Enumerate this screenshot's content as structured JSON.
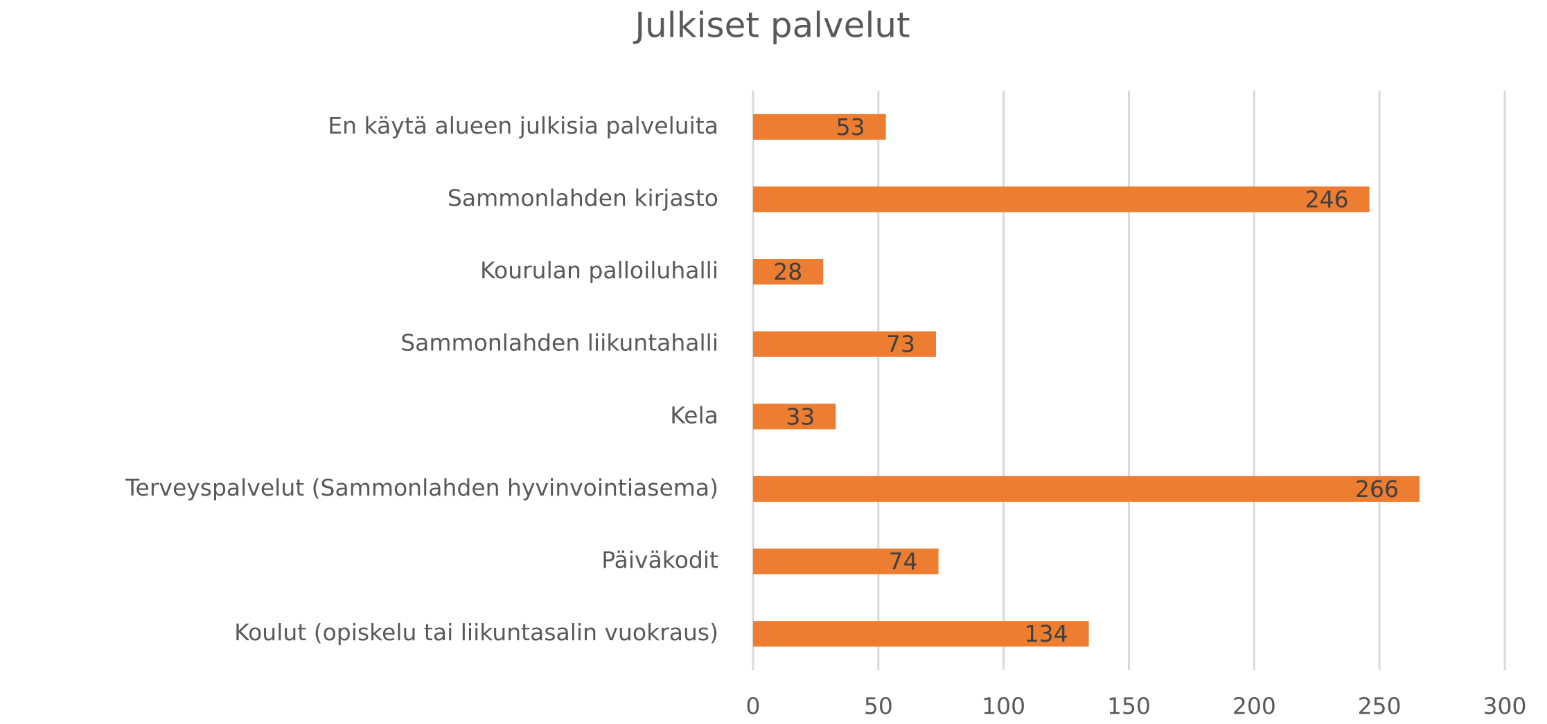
{
  "chart_data": {
    "type": "bar",
    "orientation": "horizontal",
    "title": "Julkiset palvelut",
    "categories": [
      "En käytä alueen julkisia palveluita",
      "Sammonlahden kirjasto",
      "Kourulan palloiluhalli",
      "Sammonlahden liikuntahalli",
      "Kela",
      "Terveyspalvelut (Sammonlahden hyvinvointiasema)",
      "Päiväkodit",
      "Koulut (opiskelu tai liikuntasalin vuokraus)"
    ],
    "values": [
      53,
      246,
      28,
      73,
      33,
      266,
      74,
      134
    ],
    "color": "#ed7d31",
    "xlim": [
      0,
      300
    ],
    "xticks": [
      0,
      50,
      100,
      150,
      200,
      250,
      300
    ],
    "grid": true
  }
}
